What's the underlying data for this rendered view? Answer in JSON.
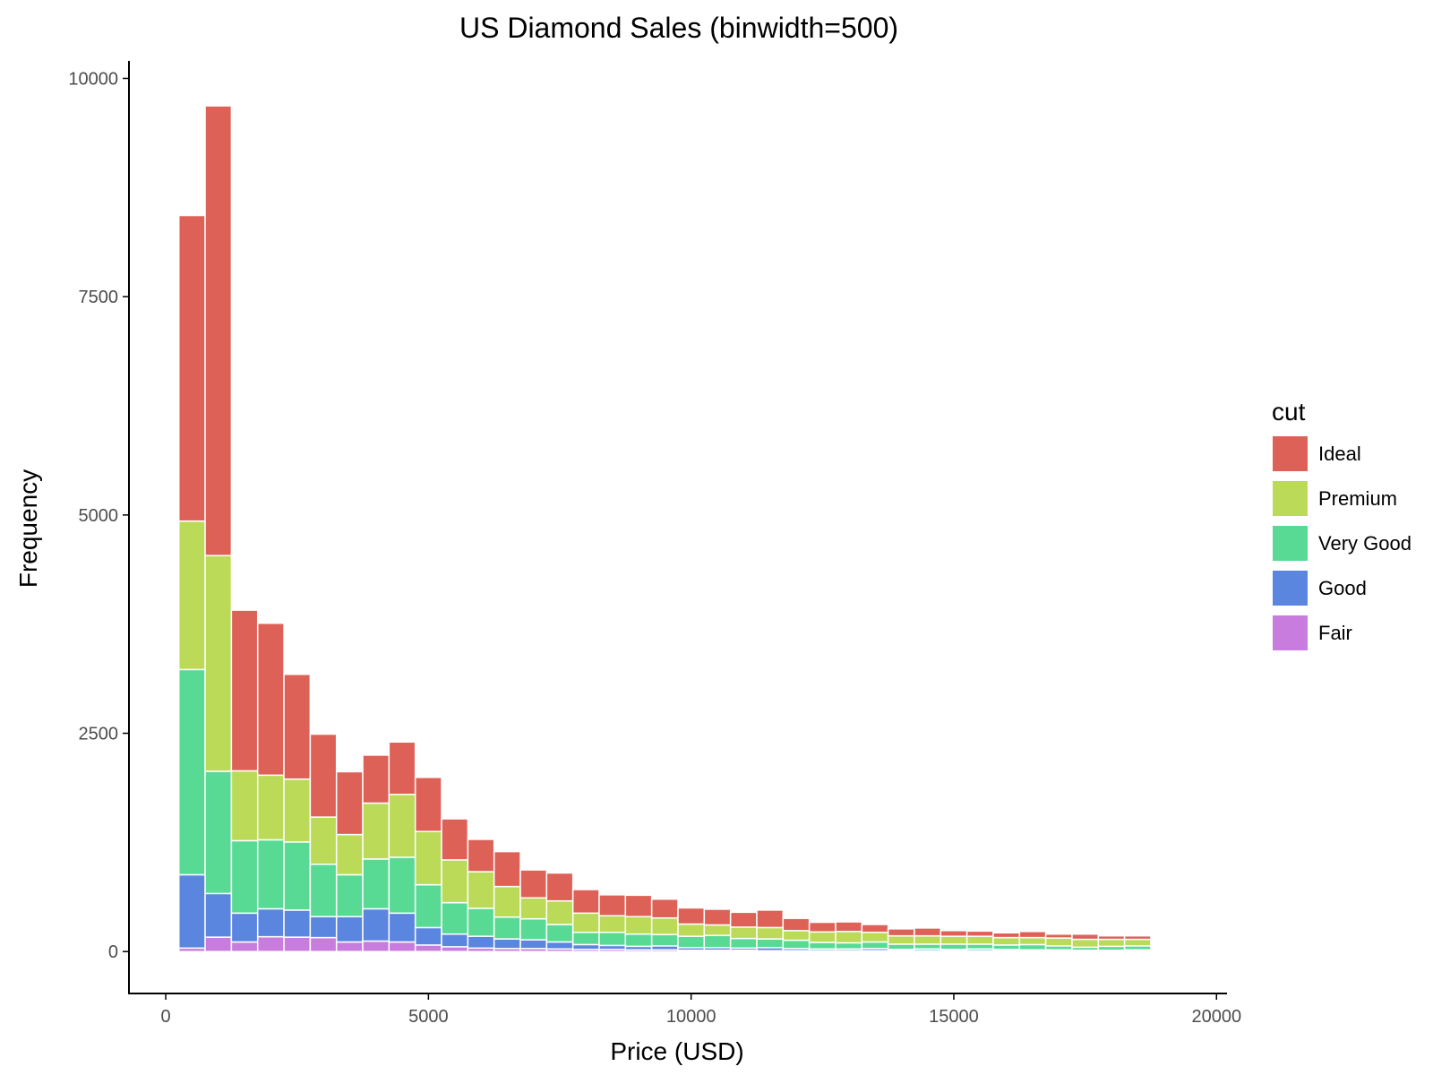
{
  "chart_data": {
    "type": "bar",
    "stacked": true,
    "title": "US Diamond Sales (binwidth=500)",
    "xlabel": "Price (USD)",
    "ylabel": "Frequency",
    "xlim": [
      -700,
      20200
    ],
    "ylim": [
      -480,
      10200
    ],
    "xticks": [
      0,
      5000,
      10000,
      15000,
      20000
    ],
    "yticks": [
      0,
      2500,
      5000,
      7500,
      10000
    ],
    "xtick_labels": [
      "0",
      "5000",
      "10000",
      "15000",
      "20000"
    ],
    "ytick_labels": [
      "0",
      "2500",
      "5000",
      "7500",
      "10000"
    ],
    "binwidth": 500,
    "bin_starts": [
      250,
      750,
      1250,
      1750,
      2250,
      2750,
      3250,
      3750,
      4250,
      4750,
      5250,
      5750,
      6250,
      6750,
      7250,
      7750,
      8250,
      8750,
      9250,
      9750,
      10250,
      10750,
      11250,
      11750,
      12250,
      12750,
      13250,
      13750,
      14250,
      14750,
      15250,
      15750,
      16250,
      16750,
      17250,
      17750,
      18250
    ],
    "legend": {
      "title": "cut",
      "position": "right"
    },
    "series": [
      {
        "name": "Fair",
        "color": "#C77CDE",
        "values": [
          40,
          165,
          110,
          170,
          165,
          160,
          110,
          120,
          110,
          75,
          55,
          40,
          35,
          35,
          30,
          25,
          25,
          20,
          20,
          15,
          15,
          15,
          10,
          10,
          10,
          10,
          10,
          10,
          10,
          10,
          10,
          10,
          5,
          5,
          5,
          5,
          5
        ]
      },
      {
        "name": "Good",
        "color": "#5A86E0",
        "values": [
          840,
          500,
          330,
          320,
          310,
          240,
          290,
          370,
          330,
          200,
          145,
          135,
          110,
          100,
          80,
          55,
          45,
          40,
          45,
          30,
          30,
          25,
          35,
          25,
          20,
          20,
          25,
          15,
          20,
          15,
          20,
          15,
          15,
          15,
          10,
          10,
          15
        ]
      },
      {
        "name": "Very Good",
        "color": "#58DA94",
        "values": [
          2350,
          1400,
          830,
          790,
          780,
          600,
          480,
          570,
          640,
          490,
          360,
          320,
          250,
          240,
          200,
          140,
          150,
          140,
          130,
          130,
          140,
          110,
          100,
          95,
          75,
          70,
          75,
          60,
          55,
          60,
          55,
          50,
          60,
          45,
          35,
          45,
          45
        ]
      },
      {
        "name": "Premium",
        "color": "#BADA58",
        "values": [
          1700,
          2470,
          800,
          740,
          720,
          540,
          460,
          640,
          720,
          610,
          490,
          420,
          350,
          240,
          270,
          220,
          190,
          200,
          190,
          140,
          120,
          130,
          130,
          110,
          120,
          130,
          110,
          95,
          95,
          90,
          90,
          85,
          80,
          90,
          90,
          80,
          75
        ]
      },
      {
        "name": "Ideal",
        "color": "#DE6157",
        "values": [
          3500,
          5150,
          1840,
          1740,
          1200,
          950,
          720,
          550,
          600,
          620,
          470,
          370,
          400,
          320,
          320,
          270,
          240,
          245,
          215,
          185,
          180,
          170,
          200,
          140,
          110,
          110,
          90,
          80,
          90,
          65,
          60,
          55,
          70,
          45,
          60,
          40,
          40
        ]
      }
    ]
  }
}
